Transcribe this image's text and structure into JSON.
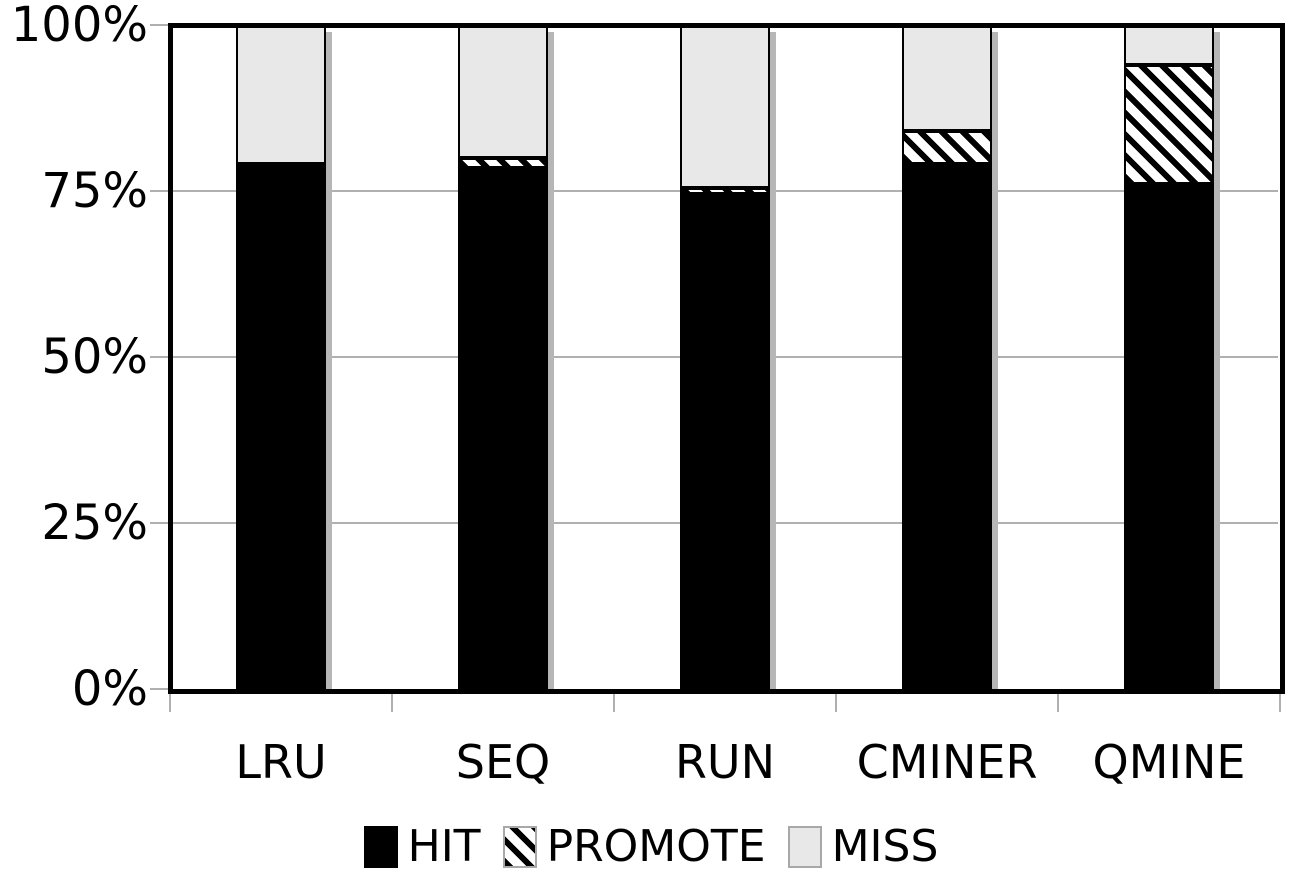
{
  "chart_data": {
    "type": "bar",
    "stacked": true,
    "orientation": "vertical",
    "title": "",
    "xlabel": "",
    "ylabel": "",
    "categories": [
      "LRU",
      "SEQ",
      "RUN",
      "CMINER",
      "QMINE"
    ],
    "series": [
      {
        "name": "HIT",
        "style": "solid-black",
        "values": [
          79,
          78.5,
          74.5,
          79,
          76
        ]
      },
      {
        "name": "PROMOTE",
        "style": "hatch-diagonal",
        "values": [
          0,
          1.5,
          1,
          5,
          18
        ]
      },
      {
        "name": "MISS",
        "style": "light-gray",
        "values": [
          21,
          20,
          24.5,
          16,
          6
        ]
      }
    ],
    "ylim": [
      0,
      100
    ],
    "yticks": [
      0,
      25,
      50,
      75,
      100
    ],
    "ytick_labels": [
      "0%",
      "25%",
      "50%",
      "75%",
      "100%"
    ],
    "grid": "horizontal",
    "legend_position": "bottom",
    "colors": {
      "hit_fill": "#000000",
      "miss_fill": "#e8e8e8",
      "hatch_stripe": "#000000",
      "hatch_background": "#ffffff",
      "segment_border": "#000000",
      "gridline": "#b0b0b0",
      "tick": "#b0b0b0",
      "frame": "#000000",
      "bar_shadow": "#b6b6b6",
      "text": "#000000",
      "plot_background": "#ffffff"
    }
  },
  "legend": {
    "items": [
      {
        "label": "HIT"
      },
      {
        "label": "PROMOTE"
      },
      {
        "label": "MISS"
      }
    ]
  }
}
